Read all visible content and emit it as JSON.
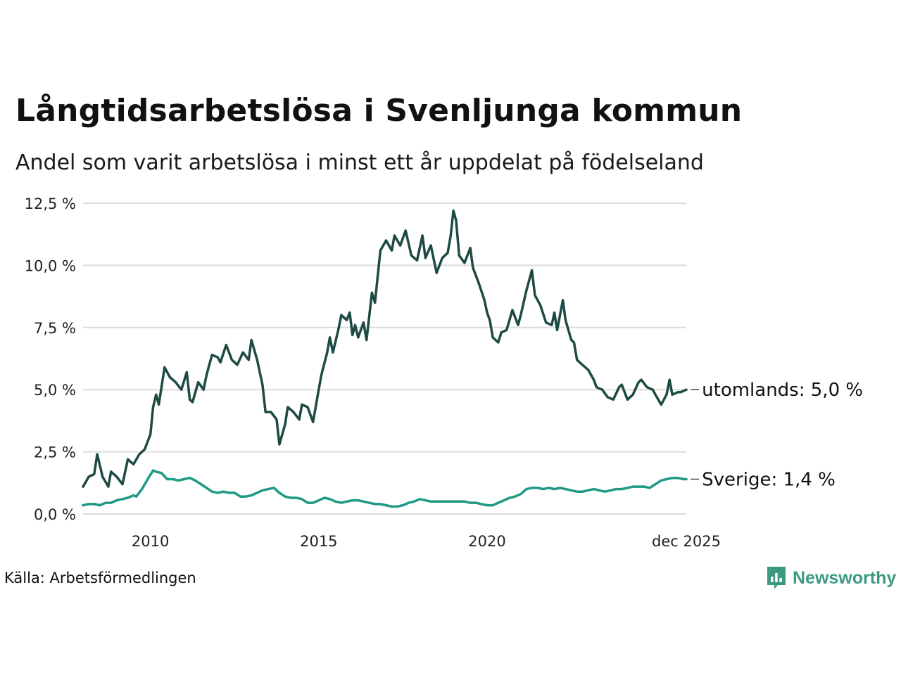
{
  "chart_data": {
    "type": "line",
    "title": "Långtidsarbetslösa i Svenljunga kommun",
    "subtitle": "Andel som varit arbetslösa i minst ett år uppdelat på födelseland",
    "xlabel": "",
    "ylabel": "",
    "ylim": [
      0,
      12.5
    ],
    "y_ticks": [
      "0,0 %",
      "2,5 %",
      "5,0 %",
      "7,5 %",
      "10,0 %",
      "12,5 %"
    ],
    "y_tick_values": [
      0,
      2.5,
      5,
      7.5,
      10,
      12.5
    ],
    "x_ticks": [
      "2010",
      "2015",
      "2020",
      "dec 2025"
    ],
    "x_tick_values": [
      2010.0,
      2015.0,
      2020.0,
      2025.917
    ],
    "x_range": [
      2008.0,
      2025.917
    ],
    "grid": true,
    "series": [
      {
        "name": "utomlands",
        "end_label": "utomlands: 5,0 %",
        "color": "#1e4a44",
        "points": [
          [
            2008.0,
            1.1
          ],
          [
            2008.17,
            1.5
          ],
          [
            2008.33,
            1.6
          ],
          [
            2008.42,
            2.4
          ],
          [
            2008.58,
            1.5
          ],
          [
            2008.75,
            1.1
          ],
          [
            2008.83,
            1.7
          ],
          [
            2009.0,
            1.5
          ],
          [
            2009.17,
            1.2
          ],
          [
            2009.33,
            2.2
          ],
          [
            2009.5,
            2.0
          ],
          [
            2009.67,
            2.4
          ],
          [
            2009.83,
            2.6
          ],
          [
            2010.0,
            3.2
          ],
          [
            2010.08,
            4.3
          ],
          [
            2010.17,
            4.8
          ],
          [
            2010.25,
            4.4
          ],
          [
            2010.42,
            5.9
          ],
          [
            2010.58,
            5.5
          ],
          [
            2010.75,
            5.3
          ],
          [
            2010.92,
            5.0
          ],
          [
            2011.08,
            5.7
          ],
          [
            2011.17,
            4.6
          ],
          [
            2011.25,
            4.5
          ],
          [
            2011.42,
            5.3
          ],
          [
            2011.58,
            5.0
          ],
          [
            2011.67,
            5.6
          ],
          [
            2011.83,
            6.4
          ],
          [
            2012.0,
            6.3
          ],
          [
            2012.08,
            6.1
          ],
          [
            2012.25,
            6.8
          ],
          [
            2012.42,
            6.2
          ],
          [
            2012.58,
            6.0
          ],
          [
            2012.75,
            6.5
          ],
          [
            2012.92,
            6.2
          ],
          [
            2013.0,
            7.0
          ],
          [
            2013.17,
            6.2
          ],
          [
            2013.33,
            5.2
          ],
          [
            2013.42,
            4.1
          ],
          [
            2013.58,
            4.1
          ],
          [
            2013.75,
            3.8
          ],
          [
            2013.83,
            2.8
          ],
          [
            2014.0,
            3.6
          ],
          [
            2014.08,
            4.3
          ],
          [
            2014.25,
            4.1
          ],
          [
            2014.42,
            3.8
          ],
          [
            2014.5,
            4.4
          ],
          [
            2014.67,
            4.3
          ],
          [
            2014.83,
            3.7
          ],
          [
            2015.0,
            5.0
          ],
          [
            2015.08,
            5.6
          ],
          [
            2015.25,
            6.5
          ],
          [
            2015.33,
            7.1
          ],
          [
            2015.42,
            6.5
          ],
          [
            2015.58,
            7.4
          ],
          [
            2015.67,
            8.0
          ],
          [
            2015.83,
            7.8
          ],
          [
            2015.92,
            8.1
          ],
          [
            2016.0,
            7.2
          ],
          [
            2016.08,
            7.6
          ],
          [
            2016.17,
            7.1
          ],
          [
            2016.33,
            7.7
          ],
          [
            2016.42,
            7.0
          ],
          [
            2016.58,
            8.9
          ],
          [
            2016.67,
            8.5
          ],
          [
            2016.83,
            10.6
          ],
          [
            2017.0,
            11.0
          ],
          [
            2017.17,
            10.6
          ],
          [
            2017.25,
            11.2
          ],
          [
            2017.42,
            10.8
          ],
          [
            2017.58,
            11.4
          ],
          [
            2017.75,
            10.4
          ],
          [
            2017.92,
            10.2
          ],
          [
            2018.08,
            11.2
          ],
          [
            2018.17,
            10.3
          ],
          [
            2018.33,
            10.8
          ],
          [
            2018.5,
            9.7
          ],
          [
            2018.67,
            10.3
          ],
          [
            2018.83,
            10.5
          ],
          [
            2018.92,
            11.2
          ],
          [
            2019.0,
            12.2
          ],
          [
            2019.08,
            11.8
          ],
          [
            2019.17,
            10.4
          ],
          [
            2019.33,
            10.1
          ],
          [
            2019.5,
            10.7
          ],
          [
            2019.58,
            9.9
          ],
          [
            2019.75,
            9.3
          ],
          [
            2019.92,
            8.6
          ],
          [
            2020.0,
            8.1
          ],
          [
            2020.08,
            7.8
          ],
          [
            2020.17,
            7.1
          ],
          [
            2020.33,
            6.9
          ],
          [
            2020.42,
            7.3
          ],
          [
            2020.58,
            7.4
          ],
          [
            2020.75,
            8.2
          ],
          [
            2020.92,
            7.6
          ],
          [
            2021.0,
            8.0
          ],
          [
            2021.17,
            9.0
          ],
          [
            2021.33,
            9.8
          ],
          [
            2021.42,
            8.8
          ],
          [
            2021.58,
            8.4
          ],
          [
            2021.75,
            7.7
          ],
          [
            2021.92,
            7.6
          ],
          [
            2022.0,
            8.1
          ],
          [
            2022.08,
            7.4
          ],
          [
            2022.25,
            8.6
          ],
          [
            2022.33,
            7.8
          ],
          [
            2022.5,
            7.0
          ],
          [
            2022.58,
            6.9
          ],
          [
            2022.67,
            6.2
          ],
          [
            2022.83,
            6.0
          ],
          [
            2023.0,
            5.8
          ],
          [
            2023.17,
            5.4
          ],
          [
            2023.25,
            5.1
          ],
          [
            2023.42,
            5.0
          ],
          [
            2023.58,
            4.7
          ],
          [
            2023.75,
            4.6
          ],
          [
            2023.92,
            5.1
          ],
          [
            2024.0,
            5.2
          ],
          [
            2024.17,
            4.6
          ],
          [
            2024.33,
            4.8
          ],
          [
            2024.5,
            5.3
          ],
          [
            2024.58,
            5.4
          ],
          [
            2024.75,
            5.1
          ],
          [
            2024.92,
            5.0
          ],
          [
            2025.0,
            4.8
          ],
          [
            2025.17,
            4.4
          ],
          [
            2025.33,
            4.8
          ],
          [
            2025.42,
            5.4
          ],
          [
            2025.5,
            4.8
          ],
          [
            2025.67,
            4.9
          ],
          [
            2025.75,
            4.9
          ],
          [
            2025.92,
            5.0
          ]
        ]
      },
      {
        "name": "Sverige",
        "end_label": "Sverige: 1,4 %",
        "color": "#1f9a86",
        "points": [
          [
            2008.0,
            0.35
          ],
          [
            2008.17,
            0.4
          ],
          [
            2008.33,
            0.4
          ],
          [
            2008.5,
            0.35
          ],
          [
            2008.67,
            0.45
          ],
          [
            2008.83,
            0.45
          ],
          [
            2009.0,
            0.55
          ],
          [
            2009.17,
            0.6
          ],
          [
            2009.33,
            0.65
          ],
          [
            2009.5,
            0.75
          ],
          [
            2009.58,
            0.7
          ],
          [
            2009.75,
            1.0
          ],
          [
            2009.92,
            1.4
          ],
          [
            2010.08,
            1.75
          ],
          [
            2010.17,
            1.7
          ],
          [
            2010.33,
            1.65
          ],
          [
            2010.5,
            1.4
          ],
          [
            2010.67,
            1.4
          ],
          [
            2010.83,
            1.35
          ],
          [
            2011.0,
            1.4
          ],
          [
            2011.17,
            1.45
          ],
          [
            2011.33,
            1.35
          ],
          [
            2011.5,
            1.2
          ],
          [
            2011.67,
            1.05
          ],
          [
            2011.83,
            0.9
          ],
          [
            2012.0,
            0.85
          ],
          [
            2012.17,
            0.9
          ],
          [
            2012.33,
            0.85
          ],
          [
            2012.5,
            0.85
          ],
          [
            2012.67,
            0.7
          ],
          [
            2012.83,
            0.7
          ],
          [
            2013.0,
            0.75
          ],
          [
            2013.17,
            0.85
          ],
          [
            2013.33,
            0.95
          ],
          [
            2013.5,
            1.0
          ],
          [
            2013.67,
            1.05
          ],
          [
            2013.83,
            0.85
          ],
          [
            2014.0,
            0.7
          ],
          [
            2014.17,
            0.65
          ],
          [
            2014.33,
            0.65
          ],
          [
            2014.5,
            0.6
          ],
          [
            2014.67,
            0.45
          ],
          [
            2014.83,
            0.45
          ],
          [
            2015.0,
            0.55
          ],
          [
            2015.17,
            0.65
          ],
          [
            2015.33,
            0.6
          ],
          [
            2015.5,
            0.5
          ],
          [
            2015.67,
            0.45
          ],
          [
            2015.83,
            0.5
          ],
          [
            2016.0,
            0.55
          ],
          [
            2016.17,
            0.55
          ],
          [
            2016.33,
            0.5
          ],
          [
            2016.5,
            0.45
          ],
          [
            2016.67,
            0.4
          ],
          [
            2016.83,
            0.4
          ],
          [
            2017.0,
            0.35
          ],
          [
            2017.17,
            0.3
          ],
          [
            2017.33,
            0.3
          ],
          [
            2017.5,
            0.35
          ],
          [
            2017.67,
            0.45
          ],
          [
            2017.83,
            0.5
          ],
          [
            2018.0,
            0.6
          ],
          [
            2018.17,
            0.55
          ],
          [
            2018.33,
            0.5
          ],
          [
            2018.5,
            0.5
          ],
          [
            2018.67,
            0.5
          ],
          [
            2018.83,
            0.5
          ],
          [
            2019.0,
            0.5
          ],
          [
            2019.17,
            0.5
          ],
          [
            2019.33,
            0.5
          ],
          [
            2019.5,
            0.45
          ],
          [
            2019.67,
            0.45
          ],
          [
            2019.83,
            0.4
          ],
          [
            2020.0,
            0.35
          ],
          [
            2020.17,
            0.35
          ],
          [
            2020.33,
            0.45
          ],
          [
            2020.5,
            0.55
          ],
          [
            2020.67,
            0.65
          ],
          [
            2020.83,
            0.7
          ],
          [
            2021.0,
            0.8
          ],
          [
            2021.17,
            1.0
          ],
          [
            2021.33,
            1.05
          ],
          [
            2021.5,
            1.05
          ],
          [
            2021.67,
            1.0
          ],
          [
            2021.83,
            1.05
          ],
          [
            2022.0,
            1.0
          ],
          [
            2022.17,
            1.05
          ],
          [
            2022.33,
            1.0
          ],
          [
            2022.5,
            0.95
          ],
          [
            2022.67,
            0.9
          ],
          [
            2022.83,
            0.9
          ],
          [
            2023.0,
            0.95
          ],
          [
            2023.17,
            1.0
          ],
          [
            2023.33,
            0.95
          ],
          [
            2023.5,
            0.9
          ],
          [
            2023.67,
            0.95
          ],
          [
            2023.83,
            1.0
          ],
          [
            2024.0,
            1.0
          ],
          [
            2024.17,
            1.05
          ],
          [
            2024.33,
            1.1
          ],
          [
            2024.5,
            1.1
          ],
          [
            2024.67,
            1.1
          ],
          [
            2024.83,
            1.05
          ],
          [
            2025.0,
            1.2
          ],
          [
            2025.17,
            1.35
          ],
          [
            2025.33,
            1.4
          ],
          [
            2025.5,
            1.45
          ],
          [
            2025.67,
            1.45
          ],
          [
            2025.83,
            1.4
          ],
          [
            2025.92,
            1.4
          ]
        ]
      }
    ]
  },
  "source": "Källa: Arbetsförmedlingen",
  "brand": {
    "name": "Newsworthy",
    "icon": "newsworthy-logo-icon",
    "color": "#3c9a80"
  }
}
